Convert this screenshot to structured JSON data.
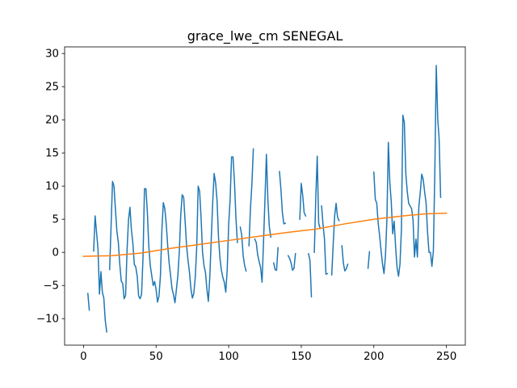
{
  "chart_data": {
    "type": "line",
    "title": "grace_lwe_cm SENEGAL",
    "xlabel": "",
    "ylabel": "",
    "xlim": [
      -13,
      263
    ],
    "ylim": [
      -14,
      31
    ],
    "x_ticks": [
      0,
      50,
      100,
      150,
      200,
      250
    ],
    "y_ticks": [
      -10,
      -5,
      0,
      5,
      10,
      15,
      20,
      25,
      30
    ],
    "x_tick_labels": [
      "0",
      "50",
      "100",
      "150",
      "200",
      "250"
    ],
    "y_tick_labels": [
      "−10",
      "−5",
      "0",
      "5",
      "10",
      "15",
      "20",
      "25",
      "30"
    ],
    "grid": false,
    "legend": "none",
    "series": [
      {
        "color": "#1f77b4",
        "segments": [
          [
            [
              3,
              -6.2
            ],
            [
              4,
              -8.7
            ]
          ],
          [
            [
              7,
              0.2
            ],
            [
              8,
              5.5
            ],
            [
              9,
              3.0
            ],
            [
              10,
              0.5
            ],
            [
              11,
              -6.3
            ],
            [
              12,
              -2.9
            ],
            [
              13,
              -6.0
            ],
            [
              14,
              -6.9
            ],
            [
              15,
              -10.3
            ],
            [
              16,
              -12.0
            ]
          ],
          [
            [
              18,
              -2.6
            ],
            [
              19,
              4.0
            ],
            [
              20,
              10.7
            ],
            [
              21,
              10.0
            ],
            [
              22,
              6.5
            ],
            [
              23,
              3.2
            ],
            [
              24,
              1.5
            ],
            [
              25,
              -1.8
            ],
            [
              26,
              -4.3
            ],
            [
              27,
              -4.7
            ],
            [
              28,
              -7.0
            ],
            [
              29,
              -6.5
            ],
            [
              30,
              0.3
            ],
            [
              31,
              4.9
            ],
            [
              32,
              6.8
            ],
            [
              33,
              3.4
            ],
            [
              34,
              1.4
            ],
            [
              35,
              -1.8
            ],
            [
              36,
              -2.2
            ],
            [
              37,
              -3.6
            ],
            [
              38,
              -6.6
            ],
            [
              39,
              -7.0
            ],
            [
              40,
              -6.3
            ],
            [
              41,
              -0.8
            ],
            [
              42,
              9.6
            ],
            [
              43,
              9.6
            ],
            [
              44,
              6.0
            ],
            [
              45,
              0.9
            ],
            [
              46,
              -2.0
            ],
            [
              47,
              -3.5
            ],
            [
              48,
              -5.0
            ],
            [
              49,
              -4.4
            ],
            [
              50,
              -5.6
            ],
            [
              51,
              -7.5
            ],
            [
              52,
              -6.6
            ],
            [
              53,
              -3.5
            ],
            [
              54,
              3.4
            ],
            [
              55,
              7.5
            ],
            [
              56,
              6.6
            ],
            [
              57,
              4.3
            ],
            [
              58,
              1.0
            ],
            [
              59,
              -1.6
            ],
            [
              60,
              -3.5
            ],
            [
              61,
              -5.5
            ],
            [
              62,
              -6.4
            ],
            [
              63,
              -7.6
            ],
            [
              64,
              -5.6
            ],
            [
              65,
              -3.5
            ],
            [
              66,
              0.1
            ],
            [
              67,
              5.7
            ],
            [
              68,
              8.7
            ],
            [
              69,
              8.3
            ],
            [
              70,
              4.7
            ],
            [
              71,
              1.0
            ],
            [
              72,
              -1.2
            ],
            [
              73,
              -3.0
            ],
            [
              74,
              -5.5
            ],
            [
              75,
              -6.9
            ],
            [
              76,
              -6.2
            ],
            [
              77,
              -3.7
            ],
            [
              78,
              0.8
            ],
            [
              79,
              10.0
            ],
            [
              80,
              9.2
            ],
            [
              81,
              5.2
            ],
            [
              82,
              0.0
            ],
            [
              83,
              -2.0
            ],
            [
              84,
              -3.0
            ],
            [
              85,
              -5.5
            ],
            [
              86,
              -7.4
            ],
            [
              87,
              -3.8
            ],
            [
              88,
              2.0
            ],
            [
              89,
              7.5
            ],
            [
              90,
              11.9
            ],
            [
              91,
              10.5
            ],
            [
              92,
              7.8
            ],
            [
              93,
              2.3
            ],
            [
              94,
              -0.9
            ],
            [
              95,
              -2.7
            ],
            [
              96,
              -3.8
            ],
            [
              97,
              -4.5
            ],
            [
              98,
              -6.0
            ],
            [
              99,
              -2.6
            ],
            [
              100,
              4.2
            ],
            [
              101,
              8.0
            ],
            [
              102,
              14.4
            ],
            [
              103,
              14.4
            ],
            [
              104,
              10.6
            ],
            [
              105,
              5.2
            ],
            [
              106,
              1.5
            ]
          ],
          [
            [
              108,
              3.8
            ],
            [
              109,
              2.6
            ],
            [
              110,
              -0.5
            ],
            [
              111,
              -2.0
            ],
            [
              112,
              -2.8
            ]
          ],
          [
            [
              114,
              1.0
            ],
            [
              115,
              6.6
            ],
            [
              116,
              10.3
            ],
            [
              117,
              15.6
            ]
          ],
          [
            [
              118,
              2.0
            ],
            [
              119,
              1.5
            ],
            [
              120,
              -0.4
            ],
            [
              121,
              -1.4
            ],
            [
              122,
              -2.3
            ],
            [
              123,
              -4.5
            ],
            [
              124,
              1.5
            ],
            [
              125,
              8.0
            ],
            [
              126,
              14.8
            ],
            [
              127,
              8.0
            ],
            [
              128,
              3.9
            ],
            [
              129,
              2.3
            ]
          ],
          [
            [
              131,
              -1.6
            ],
            [
              132,
              -2.6
            ],
            [
              133,
              -2.7
            ],
            [
              134,
              0.7
            ]
          ],
          [
            [
              135,
              12.2
            ],
            [
              136,
              9.5
            ],
            [
              137,
              6.0
            ],
            [
              138,
              4.3
            ],
            [
              139,
              4.4
            ]
          ],
          [
            [
              141,
              -0.5
            ],
            [
              142,
              -0.9
            ],
            [
              143,
              -1.6
            ],
            [
              144,
              -2.7
            ],
            [
              145,
              -2.4
            ],
            [
              146,
              -0.2
            ]
          ],
          [
            [
              149,
              5.0
            ],
            [
              150,
              10.4
            ],
            [
              151,
              8.6
            ],
            [
              152,
              6.0
            ],
            [
              153,
              5.5
            ]
          ],
          [
            [
              155,
              -0.2
            ],
            [
              156,
              -1.2
            ],
            [
              157,
              -6.7
            ]
          ],
          [
            [
              159,
              0.0
            ],
            [
              160,
              8.2
            ],
            [
              161,
              14.5
            ],
            [
              162,
              4.4
            ],
            [
              163,
              3.6
            ]
          ],
          [
            [
              164,
              7.0
            ],
            [
              165,
              4.2
            ],
            [
              166,
              2.0
            ],
            [
              167,
              -3.3
            ],
            [
              168,
              -3.2
            ]
          ],
          [
            [
              171,
              -3.4
            ],
            [
              172,
              1.2
            ],
            [
              173,
              5.5
            ],
            [
              174,
              7.4
            ],
            [
              175,
              5.3
            ],
            [
              176,
              4.8
            ]
          ],
          [
            [
              178,
              1.0
            ],
            [
              179,
              -1.6
            ],
            [
              180,
              -2.8
            ],
            [
              181,
              -2.5
            ],
            [
              182,
              -1.8
            ]
          ],
          [
            [
              196,
              -2.4
            ],
            [
              197,
              0.1
            ]
          ],
          [
            [
              200,
              12.1
            ],
            [
              201,
              8.0
            ],
            [
              202,
              7.4
            ],
            [
              203,
              4.4
            ],
            [
              204,
              2.5
            ],
            [
              205,
              0.2
            ],
            [
              206,
              -1.8
            ],
            [
              207,
              -3.2
            ],
            [
              208,
              -0.5
            ],
            [
              209,
              5.0
            ],
            [
              210,
              16.6
            ],
            [
              211,
              10.6
            ],
            [
              212,
              7.6
            ],
            [
              213,
              2.8
            ],
            [
              214,
              4.7
            ],
            [
              215,
              0.8
            ],
            [
              216,
              -2.3
            ],
            [
              217,
              -3.6
            ],
            [
              218,
              -1.8
            ],
            [
              219,
              3.5
            ],
            [
              220,
              20.7
            ],
            [
              221,
              19.6
            ],
            [
              222,
              12.0
            ],
            [
              223,
              9.2
            ],
            [
              224,
              7.4
            ],
            [
              225,
              7.0
            ],
            [
              226,
              6.6
            ],
            [
              227,
              4.9
            ],
            [
              228,
              -0.7
            ],
            [
              229,
              2.0
            ],
            [
              230,
              -0.7
            ],
            [
              231,
              6.9
            ],
            [
              232,
              9.1
            ],
            [
              233,
              11.8
            ],
            [
              234,
              11.0
            ],
            [
              235,
              9.1
            ],
            [
              236,
              7.4
            ],
            [
              237,
              3.0
            ],
            [
              238,
              0.0
            ],
            [
              239,
              0.0
            ],
            [
              240,
              -2.1
            ],
            [
              241,
              0.2
            ],
            [
              242,
              12.0
            ],
            [
              243,
              28.2
            ],
            [
              244,
              20.2
            ],
            [
              245,
              17.0
            ],
            [
              246,
              8.3
            ]
          ]
        ]
      },
      {
        "color": "#ff7f0e",
        "segments": [
          [
            [
              0,
              -0.6
            ],
            [
              20,
              -0.5
            ],
            [
              40,
              -0.1
            ],
            [
              60,
              0.6
            ],
            [
              80,
              1.2
            ],
            [
              100,
              1.8
            ],
            [
              120,
              2.4
            ],
            [
              140,
              3.0
            ],
            [
              160,
              3.5
            ],
            [
              180,
              4.3
            ],
            [
              200,
              5.0
            ],
            [
              220,
              5.5
            ],
            [
              235,
              5.8
            ],
            [
              250,
              5.9
            ]
          ]
        ]
      }
    ]
  }
}
